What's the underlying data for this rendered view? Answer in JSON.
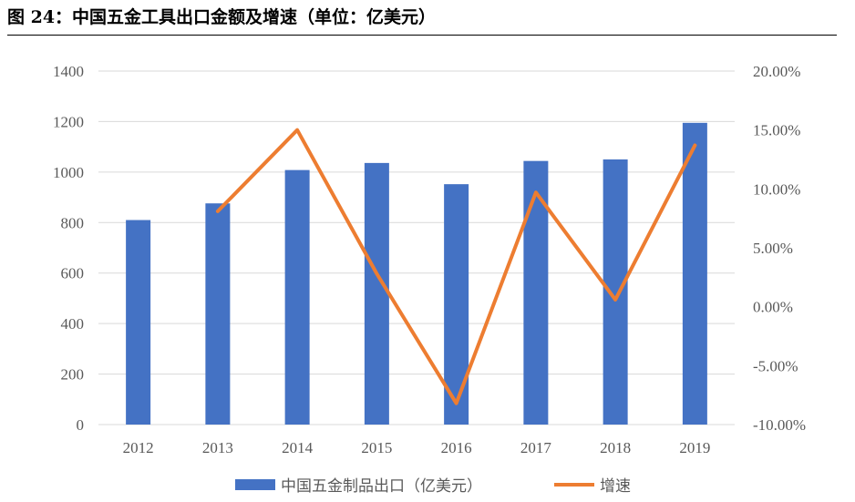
{
  "title": "图 24：中国五金工具出口金额及增速（单位：亿美元）",
  "chart_data": {
    "type": "bar",
    "categories": [
      "2012",
      "2013",
      "2014",
      "2015",
      "2016",
      "2017",
      "2018",
      "2019"
    ],
    "series": [
      {
        "name": "中国五金制品出口（亿美元）",
        "type": "bar",
        "axis": "left",
        "color": "#4472C4",
        "values": [
          810,
          876,
          1008,
          1036,
          952,
          1044,
          1050,
          1195
        ]
      },
      {
        "name": "增速",
        "type": "line",
        "axis": "right",
        "color": "#ED7D31",
        "values": [
          null,
          8.1,
          15.0,
          2.8,
          -8.2,
          9.7,
          0.6,
          13.7
        ]
      }
    ],
    "ylim_left": [
      0,
      1400
    ],
    "yticks_left": [
      "0",
      "200",
      "400",
      "600",
      "800",
      "1000",
      "1200",
      "1400"
    ],
    "ylim_right": [
      -10,
      20
    ],
    "yticks_right": [
      "-10.00%",
      "-5.00%",
      "0.00%",
      "5.00%",
      "10.00%",
      "15.00%",
      "20.00%"
    ],
    "grid": true,
    "legend": "bottom"
  }
}
